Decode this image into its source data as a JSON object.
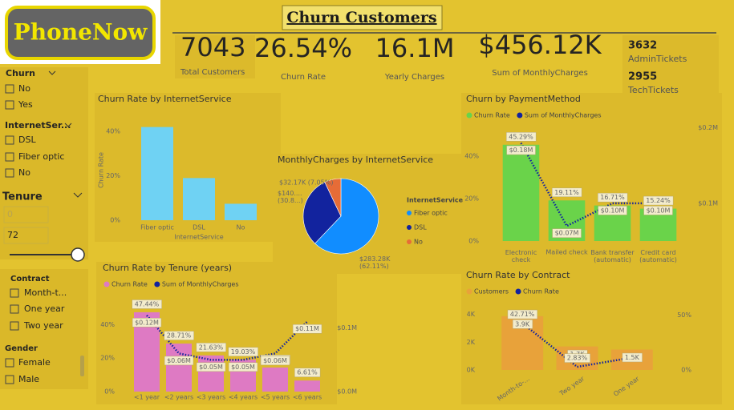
{
  "header": {
    "logo": "PhoneNow",
    "title": "Churn Customers"
  },
  "kpis": [
    {
      "value": "7043",
      "label": "Total Customers"
    },
    {
      "value": "26.54%",
      "label": "Churn Rate"
    },
    {
      "value": "16.1M",
      "label": "Yearly Charges"
    },
    {
      "value": "$456.12K",
      "label": "Sum of MonthlyCharges"
    },
    {
      "value": "3632",
      "label": "AdminTickets"
    },
    {
      "value": "2955",
      "label": "TechTickets"
    }
  ],
  "slicers": [
    {
      "title": "Churn",
      "options": [
        "No",
        "Yes"
      ]
    },
    {
      "title": "InternetSer...",
      "options": [
        "DSL",
        "Fiber optic",
        "No"
      ]
    },
    {
      "title": "Tenure",
      "range": [
        "0",
        "72"
      ]
    },
    {
      "title": "Contract",
      "options": [
        "Month-t...",
        "One year",
        "Two year"
      ]
    },
    {
      "title": "Gender",
      "options": [
        "Female",
        "Male"
      ]
    }
  ],
  "chart_data": [
    {
      "type": "bar",
      "title": "Churn Rate by InternetService",
      "y_label": "Churn Rate",
      "x_label": "InternetService",
      "categories": [
        "Fiber optic",
        "DSL",
        "No"
      ],
      "values": [
        41.89,
        18.96,
        7.4
      ],
      "color": "#6fd2f3",
      "ylim": [
        0,
        45
      ],
      "yticks": [
        {
          "value": 0,
          "label": "0%"
        },
        {
          "value": 20,
          "label": "20%"
        },
        {
          "value": 40,
          "label": "40%"
        }
      ]
    },
    {
      "type": "pie",
      "title": "MonthlyCharges by InternetService",
      "legend_title": "InternetService",
      "categories": [
        "Fiber optic",
        "DSL",
        "No"
      ],
      "values": [
        62.11,
        30.84,
        7.05
      ],
      "value_labels": [
        "$283.28K (62.11%)",
        "$140.... (30.8...)",
        "$32.17K (7.05%)"
      ],
      "colors": [
        "#118dff",
        "#12239e",
        "#e66c37"
      ]
    },
    {
      "type": "combo",
      "title": "Churn by PaymentMethod",
      "categories": [
        "Electronic check",
        "Mailed check",
        "Bank transfer (automatic)",
        "Credit card (automatic)"
      ],
      "series": [
        {
          "name": "Churn Rate",
          "type": "bar",
          "color": "#6ad34a",
          "values": [
            45.29,
            19.11,
            16.71,
            15.24
          ],
          "value_labels": [
            "45.29%",
            "19.11%",
            "16.71%",
            "15.24%"
          ]
        },
        {
          "name": "Sum of MonthlyCharges",
          "type": "line",
          "axis": "y2",
          "color": "#12239e",
          "values": [
            0.18,
            0.07,
            0.1,
            0.1
          ],
          "value_labels": [
            "$0.18M",
            "$0.07M",
            "$0.10M",
            "$0.10M"
          ]
        }
      ],
      "ylim": [
        0,
        55
      ],
      "yticks": [
        {
          "value": 0,
          "label": "0%"
        },
        {
          "value": 20,
          "label": "20%"
        },
        {
          "value": 40,
          "label": "40%"
        }
      ],
      "y2lim": [
        0.05,
        0.205
      ],
      "y2ticks": [
        {
          "value": 0.1,
          "label": "$0.1M"
        },
        {
          "value": 0.2,
          "label": "$0.2M"
        }
      ]
    },
    {
      "type": "combo",
      "title": "Churn Rate by Tenure (years)",
      "categories": [
        "<1 year",
        "<2 years",
        "<3 years",
        "<4 years",
        "<5 years",
        "<6 years"
      ],
      "series": [
        {
          "name": "Churn Rate",
          "type": "bar",
          "color": "#de7ac3",
          "values": [
            47.44,
            28.71,
            21.63,
            19.03,
            14.42,
            6.61
          ],
          "value_labels": [
            "47.44%",
            "28.71%",
            "21.63%",
            "19.03%",
            "14.42%",
            "6.61%"
          ]
        },
        {
          "name": "Sum of MonthlyCharges",
          "type": "line",
          "axis": "y2",
          "color": "#12239e",
          "values": [
            0.12,
            0.06,
            0.05,
            0.05,
            0.06,
            0.11
          ],
          "value_labels": [
            "$0.12M",
            "$0.06M",
            "$0.05M",
            "$0.05M",
            "$0.06M",
            "$0.11M"
          ]
        }
      ],
      "ylim": [
        0,
        57
      ],
      "yticks": [
        {
          "value": 0,
          "label": "0%"
        },
        {
          "value": 20,
          "label": "20%"
        },
        {
          "value": 40,
          "label": "40%"
        }
      ],
      "y2lim": [
        0,
        0.15
      ],
      "y2ticks": [
        {
          "value": 0,
          "label": "$0.0M"
        },
        {
          "value": 0.1,
          "label": "$0.1M"
        }
      ]
    },
    {
      "type": "combo",
      "title": "Churn Rate by Contract",
      "categories": [
        "Month-to-...",
        "Two year",
        "One year"
      ],
      "series": [
        {
          "name": "Customers",
          "type": "bar",
          "color": "#e8a23a",
          "values": [
            3875,
            1695,
            1473
          ],
          "value_labels": [
            "3.9K",
            "1.7K",
            "1.5K"
          ]
        },
        {
          "name": "Churn Rate",
          "type": "line",
          "axis": "y2",
          "color": "#12239e",
          "values": [
            42.71,
            2.83,
            11.27
          ],
          "value_labels": [
            "42.71%",
            "2.83%",
            null
          ]
        }
      ],
      "ylim": [
        0,
        4500
      ],
      "yticks": [
        {
          "value": 0,
          "label": "0K"
        },
        {
          "value": 2000,
          "label": "2K"
        },
        {
          "value": 4000,
          "label": "4K"
        }
      ],
      "y2lim": [
        0,
        57
      ],
      "y2ticks": [
        {
          "value": 0,
          "label": "0%"
        },
        {
          "value": 50,
          "label": "50%"
        }
      ]
    }
  ]
}
